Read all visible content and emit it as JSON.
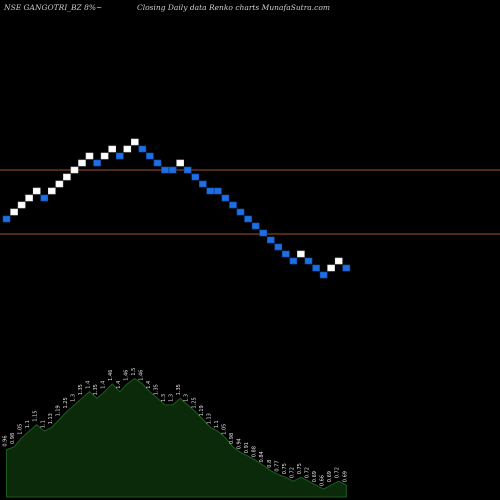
{
  "header": {
    "symbol": "NSE GANGOTRI_BZ 8%~",
    "description": "Closing Daily data  Renko  charts MunafaSutra.com"
  },
  "colors": {
    "background": "#000000",
    "up_brick": "#ffffff",
    "down_brick": "#1f6fe0",
    "reference_line": "#a0522d",
    "volume_fill": "#0a2a0a",
    "volume_stroke": "#1e5c1e"
  },
  "chart_data": [
    {
      "type": "renko",
      "title": "",
      "brick_sequence": [
        0,
        1,
        2,
        3,
        4,
        3,
        4,
        5,
        6,
        7,
        8,
        9,
        8,
        9,
        10,
        9,
        10,
        11,
        10,
        9,
        8,
        7,
        7,
        8,
        7,
        6,
        5,
        4,
        4,
        3,
        2,
        1,
        0,
        -1,
        -2,
        -3,
        -4,
        -5,
        -6,
        -5,
        -6,
        -7,
        -8,
        -7,
        -6,
        -7
      ],
      "directions": [
        "down",
        "up",
        "up",
        "up",
        "up",
        "down",
        "up",
        "up",
        "up",
        "up",
        "up",
        "up",
        "down",
        "up",
        "up",
        "down",
        "up",
        "up",
        "down",
        "down",
        "down",
        "down",
        "down",
        "up",
        "down",
        "down",
        "down",
        "down",
        "down",
        "down",
        "down",
        "down",
        "down",
        "down",
        "down",
        "down",
        "down",
        "down",
        "down",
        "up",
        "down",
        "down",
        "down",
        "up",
        "up",
        "down"
      ],
      "reference_lines": [
        "upper",
        "lower"
      ],
      "grid": false,
      "legend": "none"
    },
    {
      "type": "area",
      "title": "",
      "labels": [
        "0.96",
        "0.98",
        "1.05",
        "1.1",
        "1.15",
        "1.1",
        "1.13",
        "1.19",
        "1.25",
        "1.3",
        "1.35",
        "1.4",
        "1.35",
        "1.4",
        "1.46",
        "1.4",
        "1.46",
        "1.5",
        "1.46",
        "1.4",
        "1.35",
        "1.3",
        "1.3",
        "1.35",
        "1.3",
        "1.25",
        "1.19",
        "1.13",
        "1.1",
        "1.05",
        "0.98",
        "0.94",
        "0.91",
        "0.88",
        "0.84",
        "0.8",
        "0.77",
        "0.75",
        "0.72",
        "0.75",
        "0.72",
        "0.69",
        "0.66",
        "0.69",
        "0.72",
        "0.69"
      ],
      "values": [
        0.96,
        0.98,
        1.05,
        1.1,
        1.15,
        1.1,
        1.13,
        1.19,
        1.25,
        1.3,
        1.35,
        1.4,
        1.35,
        1.4,
        1.46,
        1.4,
        1.46,
        1.5,
        1.46,
        1.4,
        1.35,
        1.3,
        1.3,
        1.35,
        1.3,
        1.25,
        1.19,
        1.13,
        1.1,
        1.05,
        0.98,
        0.94,
        0.91,
        0.88,
        0.84,
        0.8,
        0.77,
        0.75,
        0.72,
        0.75,
        0.72,
        0.69,
        0.66,
        0.69,
        0.72,
        0.69
      ]
    }
  ]
}
